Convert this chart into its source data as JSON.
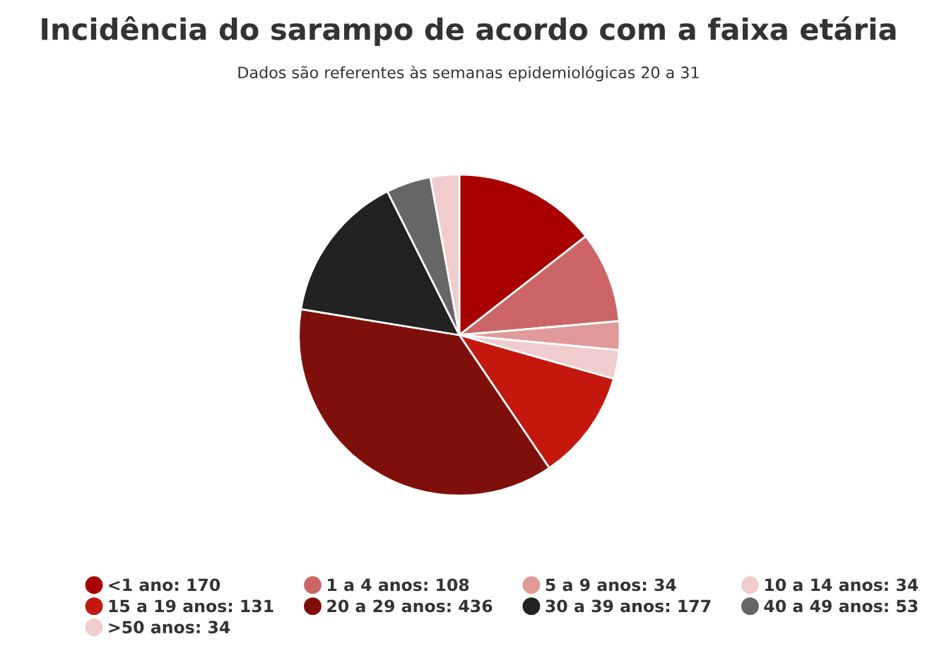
{
  "chart_data": {
    "type": "pie",
    "title": "Incidência do sarampo de acordo com a faixa etária",
    "subtitle": "Dados são referentes às semanas epidemiológicas 20 a 31",
    "categories": [
      "<1 ano: 170",
      "1 a 4 anos: 108",
      "5 a 9 anos: 34",
      "10 a 14 anos: 34",
      "15 a 19 anos: 131",
      "20 a 29 anos: 436",
      "30 a 39 anos: 177",
      "40 a 49 anos: 53",
      ">50 anos: 34"
    ],
    "values": [
      170,
      108,
      34,
      34,
      131,
      436,
      177,
      53,
      34
    ],
    "colors": [
      "#a80000",
      "#cc6666",
      "#e09a9a",
      "#f0cccc",
      "#c4180e",
      "#7f0f0a",
      "#222222",
      "#666666",
      "#f0cccc"
    ],
    "legend": "bottom"
  }
}
